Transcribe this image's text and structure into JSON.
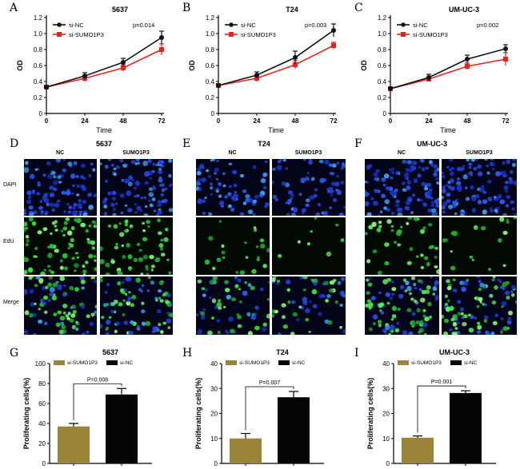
{
  "panel_letters": [
    "A",
    "B",
    "C",
    "D",
    "E",
    "F",
    "G",
    "H",
    "I"
  ],
  "colors": {
    "si_nc": "#111111",
    "si_sumo": "#e8221c",
    "bar_sumo": "#9a8438",
    "bar_nc": "#050505",
    "dapi": "#1e3ed4",
    "edu": "#37e93a"
  },
  "microscopy": {
    "col_labels": [
      "NC",
      "SUMO1P3"
    ],
    "row_labels": [
      "DAPI",
      "EdU",
      "Merge"
    ],
    "panels": [
      {
        "letter": "D",
        "cell_line": "5637"
      },
      {
        "letter": "E",
        "cell_line": "T24"
      },
      {
        "letter": "F",
        "cell_line": "UM-UC-3"
      }
    ]
  },
  "chart_data": [
    {
      "type": "line",
      "panel": "A",
      "title": "5637",
      "xlabel": "Time",
      "ylabel": "OD",
      "x": [
        0,
        24,
        48,
        72
      ],
      "xticks": [
        "0",
        "24",
        "48",
        "72"
      ],
      "ylim": [
        0,
        1.2
      ],
      "yticks": [
        "0",
        "0.2",
        "0.4",
        "0.6",
        "0.8",
        "1.0",
        "1.2"
      ],
      "annotation": "p=0.014",
      "series": [
        {
          "name": "si-NC",
          "values": [
            0.33,
            0.47,
            0.64,
            0.95
          ],
          "errors": [
            0.02,
            0.04,
            0.05,
            0.08
          ]
        },
        {
          "name": "si-SUMO1P3",
          "values": [
            0.33,
            0.44,
            0.57,
            0.8
          ],
          "errors": [
            0.02,
            0.04,
            0.04,
            0.07
          ]
        }
      ]
    },
    {
      "type": "line",
      "panel": "B",
      "title": "T24",
      "xlabel": "Time",
      "ylabel": "OD",
      "x": [
        0,
        24,
        48,
        72
      ],
      "xticks": [
        "0",
        "24",
        "48",
        "72"
      ],
      "ylim": [
        0,
        1.2
      ],
      "yticks": [
        "0",
        "0.2",
        "0.4",
        "0.6",
        "0.8",
        "1.0",
        "1.2"
      ],
      "annotation": "p=0.003",
      "series": [
        {
          "name": "si-NC",
          "values": [
            0.35,
            0.48,
            0.7,
            1.04
          ],
          "errors": [
            0.02,
            0.04,
            0.08,
            0.08
          ]
        },
        {
          "name": "si-SUMO1P3",
          "values": [
            0.35,
            0.44,
            0.61,
            0.85
          ],
          "errors": [
            0.02,
            0.04,
            0.05,
            0.04
          ]
        }
      ]
    },
    {
      "type": "line",
      "panel": "C",
      "title": "UM-UC-3",
      "xlabel": "Time",
      "ylabel": "OD",
      "x": [
        0,
        24,
        48,
        72
      ],
      "xticks": [
        "0",
        "24",
        "48",
        "72"
      ],
      "ylim": [
        0,
        1.2
      ],
      "yticks": [
        "0",
        "0.2",
        "0.4",
        "0.6",
        "0.8",
        "1.0",
        "1.2"
      ],
      "annotation": "p=0.002",
      "series": [
        {
          "name": "si-NC",
          "values": [
            0.31,
            0.45,
            0.68,
            0.81
          ],
          "errors": [
            0.02,
            0.04,
            0.05,
            0.05
          ]
        },
        {
          "name": "si-SUMO1P3",
          "values": [
            0.31,
            0.43,
            0.59,
            0.68
          ],
          "errors": [
            0.02,
            0.03,
            0.04,
            0.08
          ]
        }
      ]
    },
    {
      "type": "bar",
      "panel": "G",
      "title": "5637",
      "ylabel": "Proliferating cells(%)",
      "categories": [
        "si-SUMO1P3",
        "si-NC"
      ],
      "values": [
        37,
        69
      ],
      "errors": [
        3,
        6
      ],
      "ylim": [
        0,
        100
      ],
      "yticks": [
        "0",
        "20",
        "40",
        "60",
        "80",
        "100"
      ],
      "annotation": "P=0.008"
    },
    {
      "type": "bar",
      "panel": "H",
      "title": "T24",
      "ylabel": "Proliferating cells(%)",
      "categories": [
        "si-SUMO1P3",
        "si-NC"
      ],
      "values": [
        10,
        26.5
      ],
      "errors": [
        2,
        2.3
      ],
      "ylim": [
        0,
        40
      ],
      "yticks": [
        "0",
        "10",
        "20",
        "30",
        "40"
      ],
      "annotation": "P=0.007"
    },
    {
      "type": "bar",
      "panel": "I",
      "title": "UM-UC-3",
      "ylabel": "Proliferating cells(%)",
      "categories": [
        "si-SUMO1P3",
        "si-NC"
      ],
      "values": [
        10.3,
        28.2
      ],
      "errors": [
        0.7,
        0.9
      ],
      "ylim": [
        0,
        40
      ],
      "yticks": [
        "0",
        "10",
        "20",
        "30",
        "40"
      ],
      "annotation": "P=0.001"
    }
  ]
}
